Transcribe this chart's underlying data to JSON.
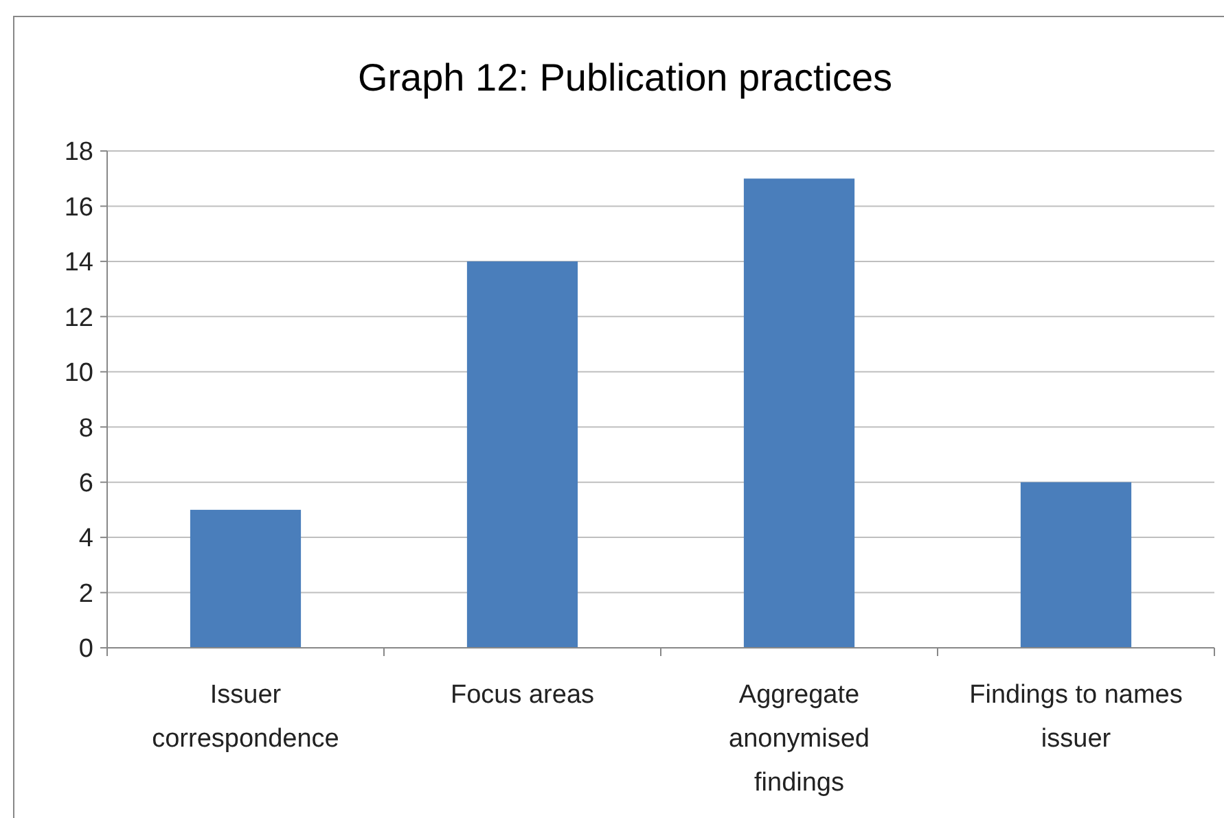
{
  "chart_data": {
    "type": "bar",
    "title": "Graph 12: Publication practices",
    "categories": [
      "Issuer correspondence",
      "Focus areas",
      "Aggregate anonymised findings",
      "Findings to names issuer"
    ],
    "values": [
      5,
      14,
      17,
      6
    ],
    "color": "#4a7ebb",
    "ylim": [
      0,
      18
    ],
    "yticks": [
      0,
      2,
      4,
      6,
      8,
      10,
      12,
      14,
      16,
      18
    ],
    "grid": "y"
  }
}
